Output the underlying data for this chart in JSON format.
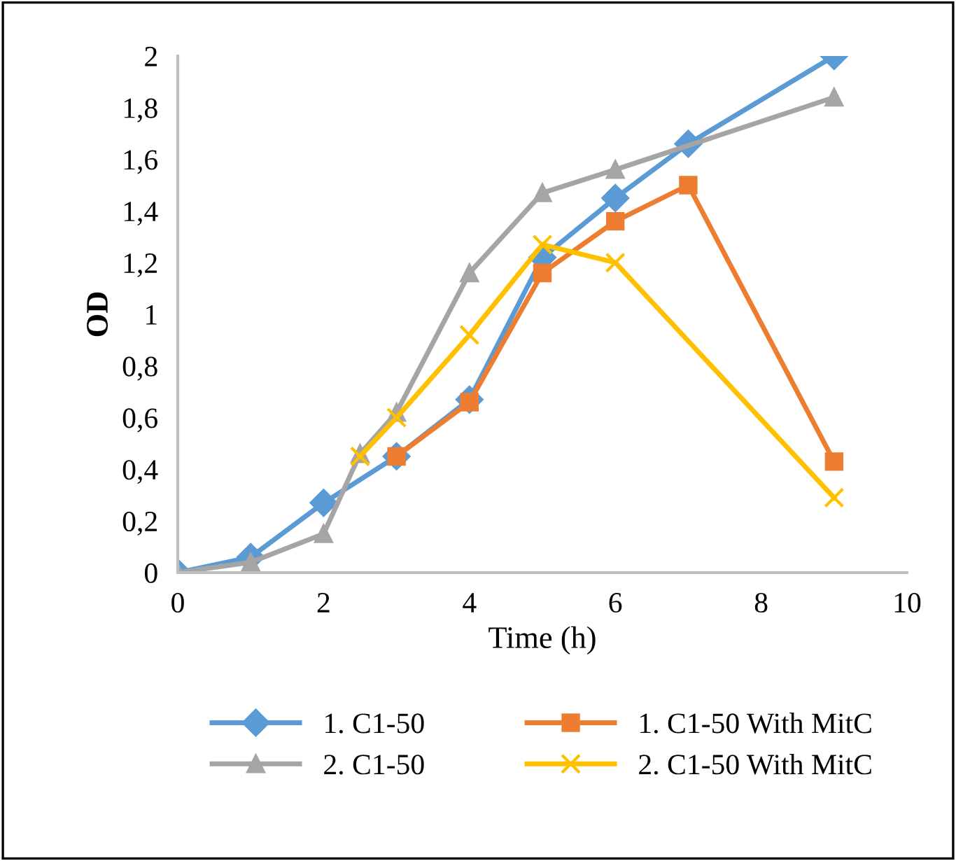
{
  "chart_data": {
    "type": "line",
    "xlabel": "Time (h)",
    "ylabel": "OD",
    "xlim": [
      0,
      10
    ],
    "xticks": [
      0,
      2,
      4,
      6,
      8,
      10
    ],
    "ylim": [
      0,
      2
    ],
    "yticks": [
      {
        "value": 0,
        "label": "0"
      },
      {
        "value": 0.2,
        "label": "0,2"
      },
      {
        "value": 0.4,
        "label": "0,4"
      },
      {
        "value": 0.6,
        "label": "0,6"
      },
      {
        "value": 0.8,
        "label": "0,8"
      },
      {
        "value": 1,
        "label": "1"
      },
      {
        "value": 1.2,
        "label": "1,2"
      },
      {
        "value": 1.4,
        "label": "1,4"
      },
      {
        "value": 1.6,
        "label": "1,6"
      },
      {
        "value": 1.8,
        "label": "1,8"
      },
      {
        "value": 2,
        "label": "2"
      }
    ],
    "grid": false,
    "legend": "bottom",
    "line_style": "solid",
    "series": [
      {
        "name": "1. C1-50",
        "color": "#5b9bd5",
        "marker": "diamond",
        "x": [
          0,
          1,
          2,
          3,
          4,
          5,
          6,
          7,
          9
        ],
        "values": [
          0,
          0.06,
          0.27,
          0.45,
          0.67,
          1.22,
          1.45,
          1.66,
          2.0
        ]
      },
      {
        "name": "1. C1-50 With MitC",
        "color": "#ed7d31",
        "marker": "square",
        "x": [
          3,
          4,
          5,
          6,
          7,
          9
        ],
        "values": [
          0.45,
          0.66,
          1.16,
          1.36,
          1.5,
          0.43
        ]
      },
      {
        "name": "2. C1-50",
        "color": "#a5a5a5",
        "marker": "triangle",
        "x": [
          0,
          1,
          2,
          2.5,
          3,
          4,
          5,
          6,
          9
        ],
        "values": [
          0,
          0.04,
          0.15,
          0.46,
          0.62,
          1.16,
          1.47,
          1.56,
          1.84
        ]
      },
      {
        "name": "2. C1-50 With MitC",
        "color": "#ffc000",
        "marker": "cross",
        "x": [
          2.5,
          3,
          4,
          5,
          6,
          9
        ],
        "values": [
          0.45,
          0.6,
          0.92,
          1.27,
          1.2,
          0.29
        ]
      }
    ]
  }
}
